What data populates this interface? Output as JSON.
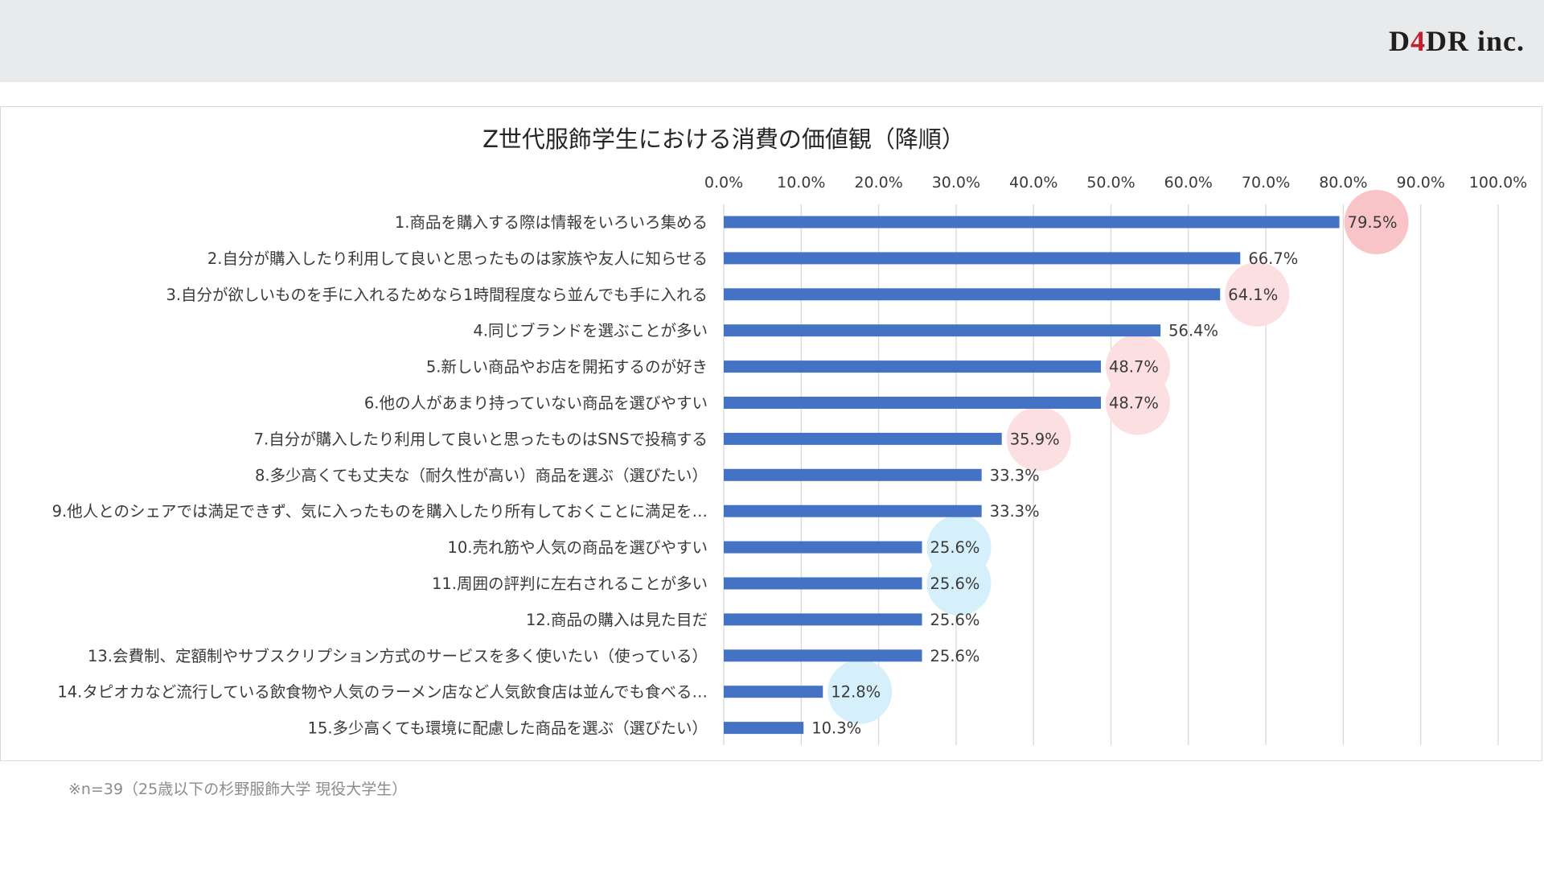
{
  "header": {
    "logo_main": "D",
    "logo_four": "4",
    "logo_rest": "DR inc."
  },
  "chart_data": {
    "type": "bar",
    "orientation": "horizontal",
    "title": "Z世代服飾学生における消費の価値観（降順）",
    "xlim": [
      0,
      100
    ],
    "x_ticks": [
      "0.0%",
      "10.0%",
      "20.0%",
      "30.0%",
      "40.0%",
      "50.0%",
      "60.0%",
      "70.0%",
      "80.0%",
      "90.0%",
      "100.0%"
    ],
    "grid": true,
    "bar_color": "#4472c4",
    "categories": [
      "1.商品を購入する際は情報をいろいろ集める",
      "2.自分が購入したり利用して良いと思ったものは家族や友人に知らせる",
      "3.自分が欲しいものを手に入れるためなら1時間程度なら並んでも手に入れる",
      "4.同じブランドを選ぶことが多い",
      "5.新しい商品やお店を開拓するのが好き",
      "6.他の人があまり持っていない商品を選びやすい",
      "7.自分が購入したり利用して良いと思ったものはSNSで投稿する",
      "8.多少高くても丈夫な（耐久性が高い）商品を選ぶ（選びたい）",
      "9.他人とのシェアでは満足できず、気に入ったものを購入したり所有しておくことに満足を…",
      "10.売れ筋や人気の商品を選びやすい",
      "11.周囲の評判に左右されることが多い",
      "12.商品の購入は見た目だ",
      "13.会費制、定額制やサブスクリプション方式のサービスを多く使いたい（使っている）",
      "14.タピオカなど流行している飲食物や人気のラーメン店など人気飲食店は並んでも食べる…",
      "15.多少高くても環境に配慮した商品を選ぶ（選びたい）"
    ],
    "values": [
      79.5,
      66.7,
      64.1,
      56.4,
      48.7,
      48.7,
      35.9,
      33.3,
      33.3,
      25.6,
      25.6,
      25.6,
      25.6,
      12.8,
      10.3
    ],
    "data_labels": [
      "79.5%",
      "66.7%",
      "64.1%",
      "56.4%",
      "48.7%",
      "48.7%",
      "35.9%",
      "33.3%",
      "33.3%",
      "25.6%",
      "25.6%",
      "25.6%",
      "25.6%",
      "12.8%",
      "10.3%"
    ],
    "highlights": [
      {
        "index": 0,
        "color": "#f8c4c8"
      },
      {
        "index": 2,
        "color": "#fbdfe1"
      },
      {
        "index": 4,
        "color": "#fbdfe1"
      },
      {
        "index": 5,
        "color": "#fbdfe1"
      },
      {
        "index": 6,
        "color": "#fbdfe1"
      },
      {
        "index": 9,
        "color": "#d6f0fb"
      },
      {
        "index": 10,
        "color": "#d6f0fb"
      },
      {
        "index": 13,
        "color": "#d6f0fb"
      }
    ]
  },
  "footnote": "※n=39（25歳以下の杉野服飾大学 現役大学生）"
}
